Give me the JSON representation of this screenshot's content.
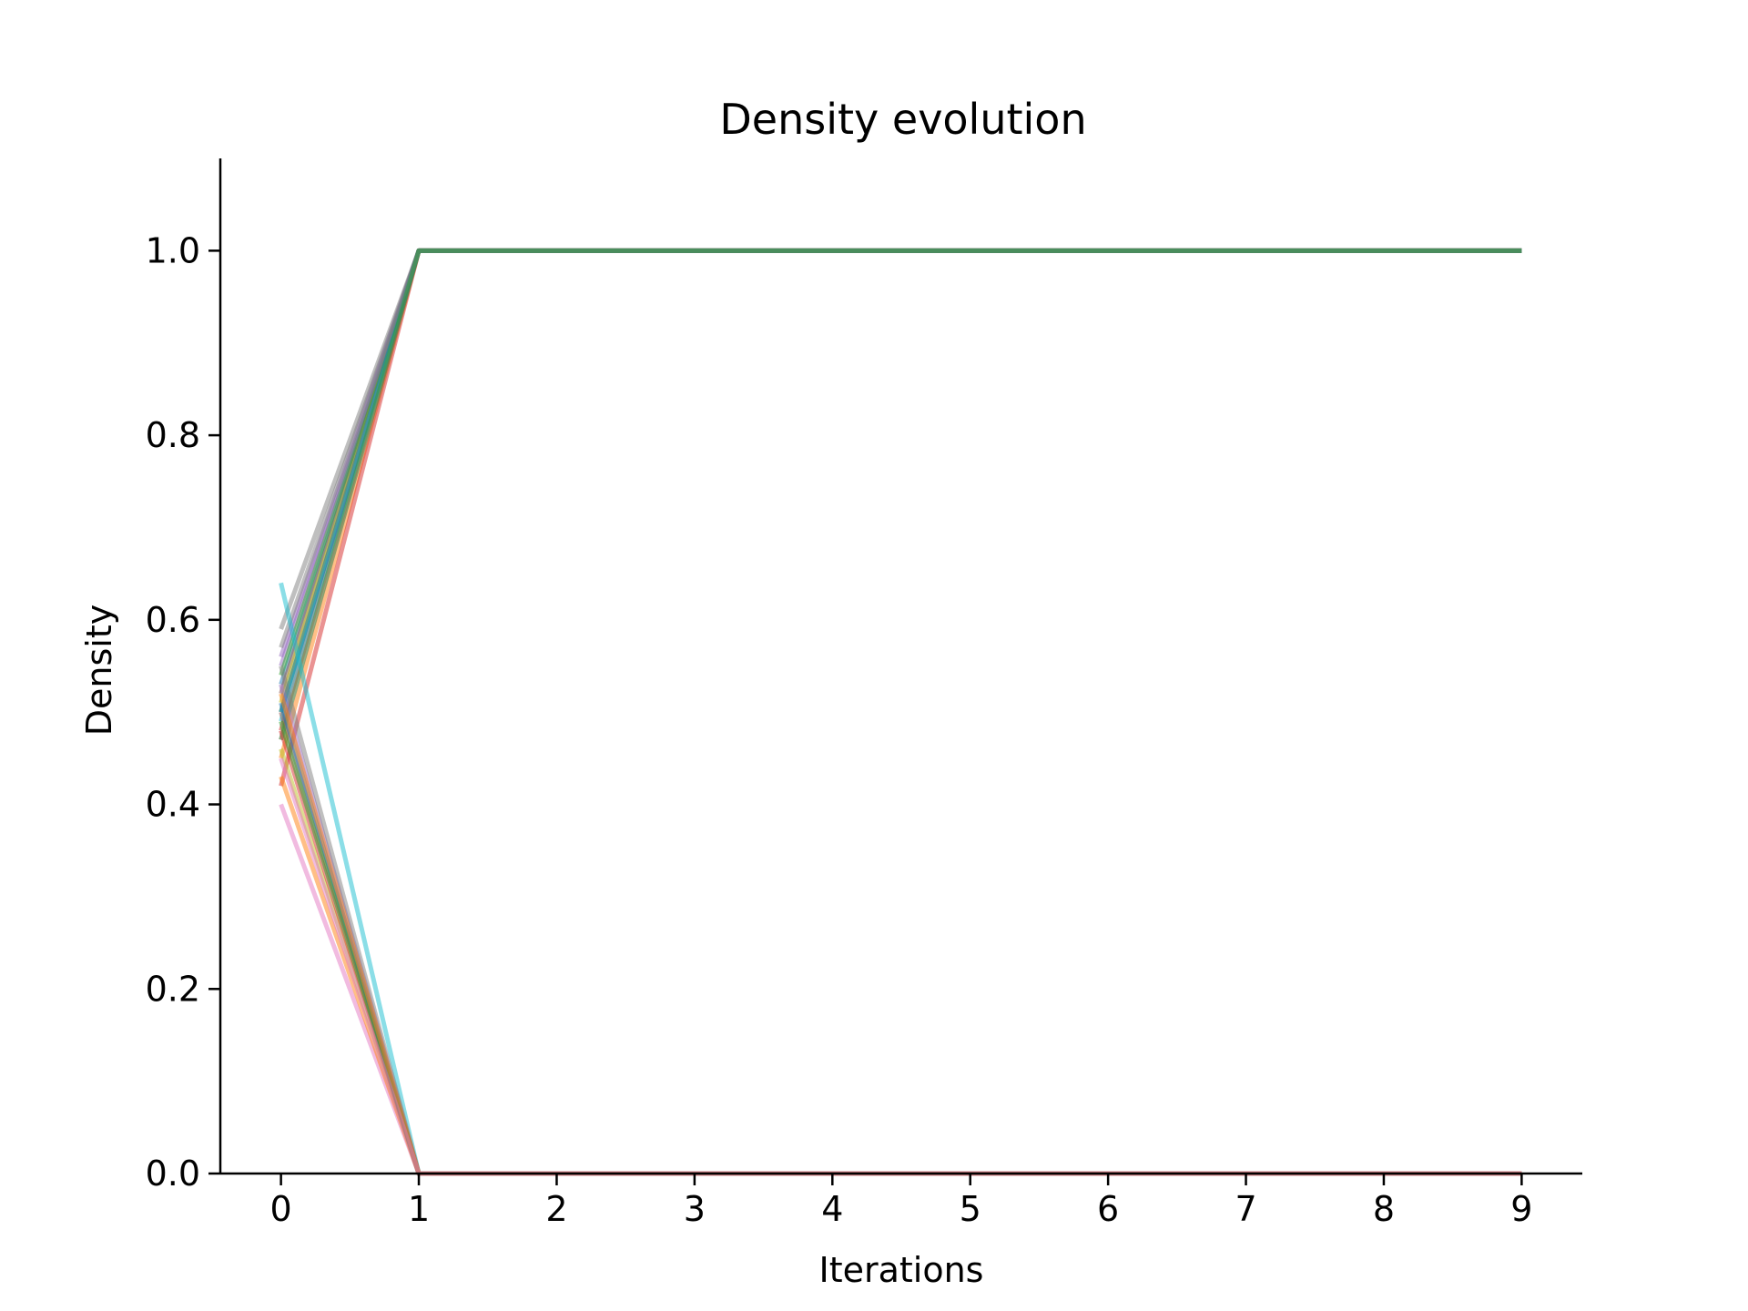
{
  "chart_data": {
    "type": "line",
    "title": "Density evolution",
    "xlabel": "Iterations",
    "ylabel": "Density",
    "xlim": [
      -0.44,
      9.44
    ],
    "ylim": [
      0.0,
      1.1
    ],
    "xticks": [
      0,
      1,
      2,
      3,
      4,
      5,
      6,
      7,
      8,
      9
    ],
    "yticks": [
      0.0,
      0.2,
      0.4,
      0.6,
      0.8,
      1.0
    ],
    "ytick_labels": [
      "0.0",
      "0.2",
      "0.4",
      "0.6",
      "0.8",
      "1.0"
    ],
    "xtick_labels": [
      "0",
      "1",
      "2",
      "3",
      "4",
      "5",
      "6",
      "7",
      "8",
      "9"
    ],
    "grid": false,
    "legend": "none",
    "x": [
      0,
      1,
      2,
      3,
      4,
      5,
      6,
      7,
      8,
      9
    ],
    "series": [
      {
        "color": "#1f77b4",
        "values": [
          0.53,
          1,
          1,
          1,
          1,
          1,
          1,
          1,
          1,
          1
        ]
      },
      {
        "color": "#ff7f0e",
        "values": [
          0.45,
          1,
          1,
          1,
          1,
          1,
          1,
          1,
          1,
          1
        ]
      },
      {
        "color": "#2ca02c",
        "values": [
          0.5,
          1,
          1,
          1,
          1,
          1,
          1,
          1,
          1,
          1
        ]
      },
      {
        "color": "#d62728",
        "values": [
          0.48,
          1,
          1,
          1,
          1,
          1,
          1,
          1,
          1,
          1
        ]
      },
      {
        "color": "#9467bd",
        "values": [
          0.55,
          1,
          1,
          1,
          1,
          1,
          1,
          1,
          1,
          1
        ]
      },
      {
        "color": "#8c564b",
        "values": [
          0.52,
          1,
          1,
          1,
          1,
          1,
          1,
          1,
          1,
          1
        ]
      },
      {
        "color": "#e377c2",
        "values": [
          0.47,
          1,
          1,
          1,
          1,
          1,
          1,
          1,
          1,
          1
        ]
      },
      {
        "color": "#7f7f7f",
        "values": [
          0.59,
          1,
          1,
          1,
          1,
          1,
          1,
          1,
          1,
          1
        ]
      },
      {
        "color": "#bcbd22",
        "values": [
          0.51,
          1,
          1,
          1,
          1,
          1,
          1,
          1,
          1,
          1
        ]
      },
      {
        "color": "#17becf",
        "values": [
          0.49,
          1,
          1,
          1,
          1,
          1,
          1,
          1,
          1,
          1
        ]
      },
      {
        "color": "#d62728",
        "values": [
          0.42,
          1,
          1,
          1,
          1,
          1,
          1,
          1,
          1,
          1
        ]
      },
      {
        "color": "#2ca02c",
        "values": [
          0.54,
          1,
          1,
          1,
          1,
          1,
          1,
          1,
          1,
          1
        ]
      },
      {
        "color": "#9467bd",
        "values": [
          0.56,
          1,
          1,
          1,
          1,
          1,
          1,
          1,
          1,
          1
        ]
      },
      {
        "color": "#1f77b4",
        "values": [
          0.5,
          1,
          1,
          1,
          1,
          1,
          1,
          1,
          1,
          1
        ]
      },
      {
        "color": "#7f7f7f",
        "values": [
          0.57,
          1,
          1,
          1,
          1,
          1,
          1,
          1,
          1,
          1
        ]
      },
      {
        "color": "#2ca02c",
        "values": [
          0.47,
          1,
          1,
          1,
          1,
          1,
          1,
          1,
          1,
          1
        ]
      },
      {
        "color": "#17becf",
        "values": [
          0.64,
          0,
          0,
          0,
          0,
          0,
          0,
          0,
          0,
          0
        ]
      },
      {
        "color": "#e377c2",
        "values": [
          0.4,
          0,
          0,
          0,
          0,
          0,
          0,
          0,
          0,
          0
        ]
      },
      {
        "color": "#ff7f0e",
        "values": [
          0.43,
          0,
          0,
          0,
          0,
          0,
          0,
          0,
          0,
          0
        ]
      },
      {
        "color": "#bcbd22",
        "values": [
          0.46,
          0,
          0,
          0,
          0,
          0,
          0,
          0,
          0,
          0
        ]
      },
      {
        "color": "#d62728",
        "values": [
          0.48,
          0,
          0,
          0,
          0,
          0,
          0,
          0,
          0,
          0
        ]
      },
      {
        "color": "#8c564b",
        "values": [
          0.5,
          0,
          0,
          0,
          0,
          0,
          0,
          0,
          0,
          0
        ]
      },
      {
        "color": "#9467bd",
        "values": [
          0.53,
          0,
          0,
          0,
          0,
          0,
          0,
          0,
          0,
          0
        ]
      },
      {
        "color": "#1f77b4",
        "values": [
          0.51,
          0,
          0,
          0,
          0,
          0,
          0,
          0,
          0,
          0
        ]
      },
      {
        "color": "#2ca02c",
        "values": [
          0.49,
          0,
          0,
          0,
          0,
          0,
          0,
          0,
          0,
          0
        ]
      },
      {
        "color": "#7f7f7f",
        "values": [
          0.55,
          0,
          0,
          0,
          0,
          0,
          0,
          0,
          0,
          0
        ]
      },
      {
        "color": "#ff7f0e",
        "values": [
          0.52,
          0,
          0,
          0,
          0,
          0,
          0,
          0,
          0,
          0
        ]
      },
      {
        "color": "#e377c2",
        "values": [
          0.45,
          0,
          0,
          0,
          0,
          0,
          0,
          0,
          0,
          0
        ]
      }
    ]
  }
}
